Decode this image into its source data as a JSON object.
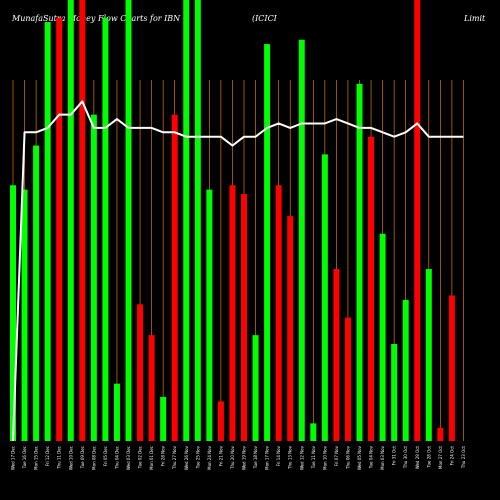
{
  "title_left": "MunafaSutra Money Flow Charts for IBN",
  "title_mid": "(ICICI",
  "title_right": "Limit",
  "colors": {
    "background": "#000000",
    "up": "#00ff00",
    "down": "#ff0000",
    "line": "#ffffff",
    "grid": "#ff8c00"
  },
  "chart_data": {
    "type": "bar",
    "ylim": [
      0,
      100
    ],
    "categories": [
      "Wed 17 Dec",
      "Tue 16 Dec",
      "Mon 15 Dec",
      "Fri 12 Dec",
      "Thu 11 Dec",
      "Wed 10 Dec",
      "Tue 09 Dec",
      "Mon 08 Dec",
      "Fri 05 Dec",
      "Thu 04 Dec",
      "Wed 03 Dec",
      "Tue 02 Dec",
      "Mon 01 Dec",
      "Fri 28 Nov",
      "Thu 27 Nov",
      "Wed 26 Nov",
      "Tue 25 Nov",
      "Mon 24 Nov",
      "Fri 21 Nov",
      "Thu 20 Nov",
      "Wed 19 Nov",
      "Tue 18 Nov",
      "Mon 17 Nov",
      "Fri 14 Nov",
      "Thu 13 Nov",
      "Wed 12 Nov",
      "Tue 11 Nov",
      "Mon 10 Nov",
      "Fri 07 Nov",
      "Thu 06 Nov",
      "Wed 05 Nov",
      "Tue 04 Nov",
      "Mon 03 Nov",
      "Fri 31 Oct",
      "Thu 30 Oct",
      "Wed 29 Oct",
      "Tue 28 Oct",
      "Mon 27 Oct",
      "Fri 24 Oct",
      "Thu 23 Oct"
    ],
    "series": [
      {
        "values": [
          58,
          57,
          67,
          95,
          96,
          100,
          100,
          74,
          96,
          13,
          100,
          31,
          24,
          10,
          74,
          100,
          100,
          57,
          9,
          58,
          56,
          24,
          90,
          58,
          51,
          91,
          4,
          65,
          39,
          28,
          81,
          69,
          47,
          22,
          32,
          100,
          39,
          3,
          33,
          0
        ],
        "colors": [
          "up",
          "up",
          "up",
          "up",
          "down",
          "up",
          "down",
          "up",
          "up",
          "up",
          "up",
          "down",
          "down",
          "up",
          "down",
          "up",
          "up",
          "up",
          "down",
          "down",
          "down",
          "up",
          "up",
          "down",
          "down",
          "up",
          "up",
          "up",
          "down",
          "down",
          "up",
          "down",
          "up",
          "up",
          "up",
          "down",
          "up",
          "down",
          "down",
          "up"
        ]
      },
      {
        "name": "",
        "type": "line",
        "values": [
          0,
          70,
          70,
          71,
          74,
          74,
          77,
          71,
          71,
          73,
          71,
          71,
          71,
          70,
          70,
          69,
          69,
          69,
          69,
          67,
          69,
          69,
          71,
          72,
          71,
          72,
          72,
          72,
          73,
          72,
          71,
          71,
          70,
          69,
          70,
          72,
          69,
          69,
          69,
          69
        ]
      }
    ]
  }
}
